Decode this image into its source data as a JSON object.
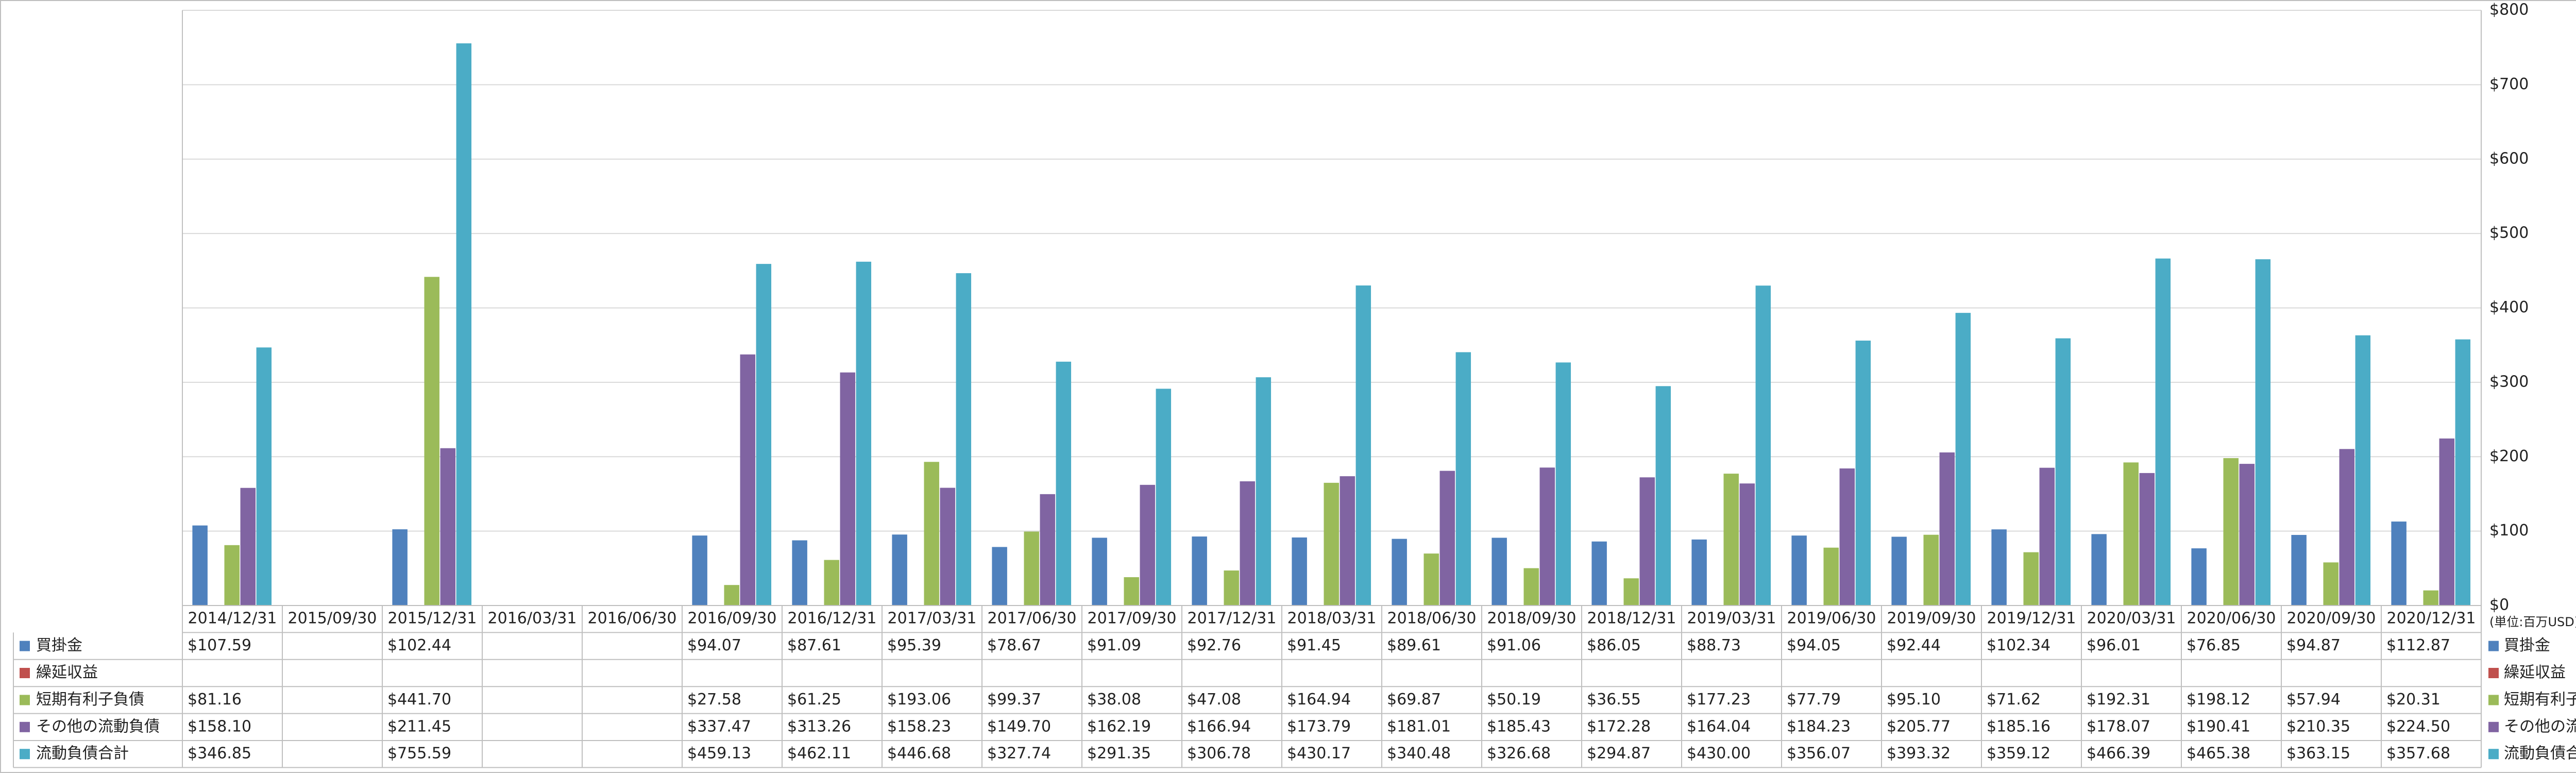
{
  "chart_data": {
    "type": "bar",
    "unit_note": "(単位:百万USD)",
    "categories": [
      "2014/12/31",
      "2015/09/30",
      "2015/12/31",
      "2016/03/31",
      "2016/06/30",
      "2016/09/30",
      "2016/12/31",
      "2017/03/31",
      "2017/06/30",
      "2017/09/30",
      "2017/12/31",
      "2018/03/31",
      "2018/06/30",
      "2018/09/30",
      "2018/12/31",
      "2019/03/31",
      "2019/06/30",
      "2019/09/30",
      "2019/12/31",
      "2020/03/31",
      "2020/06/30",
      "2020/09/30",
      "2020/12/31"
    ],
    "series": [
      {
        "name": "買掛金",
        "color": "#4f81bd",
        "values": [
          107.59,
          null,
          102.44,
          null,
          null,
          94.07,
          87.61,
          95.39,
          78.67,
          91.09,
          92.76,
          91.45,
          89.61,
          91.06,
          86.05,
          88.73,
          94.05,
          92.44,
          102.34,
          96.01,
          76.85,
          94.87,
          112.87
        ],
        "value_labels": [
          "$107.59",
          null,
          "$102.44",
          null,
          null,
          "$94.07",
          "$87.61",
          "$95.39",
          "$78.67",
          "$91.09",
          "$92.76",
          "$91.45",
          "$89.61",
          "$91.06",
          "$86.05",
          "$88.73",
          "$94.05",
          "$92.44",
          "$102.34",
          "$96.01",
          "$76.85",
          "$94.87",
          "$112.87"
        ]
      },
      {
        "name": "繰延収益",
        "color": "#c0504d",
        "values": [
          null,
          null,
          null,
          null,
          null,
          null,
          null,
          null,
          null,
          null,
          null,
          null,
          null,
          null,
          null,
          null,
          null,
          null,
          null,
          null,
          null,
          null,
          null
        ],
        "value_labels": [
          null,
          null,
          null,
          null,
          null,
          null,
          null,
          null,
          null,
          null,
          null,
          null,
          null,
          null,
          null,
          null,
          null,
          null,
          null,
          null,
          null,
          null,
          null
        ]
      },
      {
        "name": "短期有利子負債",
        "color": "#9bbb59",
        "values": [
          81.16,
          null,
          441.7,
          null,
          null,
          27.58,
          61.25,
          193.06,
          99.37,
          38.08,
          47.08,
          164.94,
          69.87,
          50.19,
          36.55,
          177.23,
          77.79,
          95.1,
          71.62,
          192.31,
          198.12,
          57.94,
          20.31
        ],
        "value_labels": [
          "$81.16",
          null,
          "$441.70",
          null,
          null,
          "$27.58",
          "$61.25",
          "$193.06",
          "$99.37",
          "$38.08",
          "$47.08",
          "$164.94",
          "$69.87",
          "$50.19",
          "$36.55",
          "$177.23",
          "$77.79",
          "$95.10",
          "$71.62",
          "$192.31",
          "$198.12",
          "$57.94",
          "$20.31"
        ]
      },
      {
        "name": "その他の流動負債",
        "color": "#8064a2",
        "values": [
          158.1,
          null,
          211.45,
          null,
          null,
          337.47,
          313.26,
          158.23,
          149.7,
          162.19,
          166.94,
          173.79,
          181.01,
          185.43,
          172.28,
          164.04,
          184.23,
          205.77,
          185.16,
          178.07,
          190.41,
          210.35,
          224.5
        ],
        "value_labels": [
          "$158.10",
          null,
          "$211.45",
          null,
          null,
          "$337.47",
          "$313.26",
          "$158.23",
          "$149.70",
          "$162.19",
          "$166.94",
          "$173.79",
          "$181.01",
          "$185.43",
          "$172.28",
          "$164.04",
          "$184.23",
          "$205.77",
          "$185.16",
          "$178.07",
          "$190.41",
          "$210.35",
          "$224.50"
        ]
      },
      {
        "name": "流動負債合計",
        "color": "#4bacc6",
        "values": [
          346.85,
          null,
          755.59,
          null,
          null,
          459.13,
          462.11,
          446.68,
          327.74,
          291.35,
          306.78,
          430.17,
          340.48,
          326.68,
          294.87,
          430.0,
          356.07,
          393.32,
          359.12,
          466.39,
          465.38,
          363.15,
          357.68
        ],
        "value_labels": [
          "$346.85",
          null,
          "$755.59",
          null,
          null,
          "$459.13",
          "$462.11",
          "$446.68",
          "$327.74",
          "$291.35",
          "$306.78",
          "$430.17",
          "$340.48",
          "$326.68",
          "$294.87",
          "$430.00",
          "$356.07",
          "$393.32",
          "$359.12",
          "$466.39",
          "$465.38",
          "$363.15",
          "$357.68"
        ]
      }
    ],
    "ylim": [
      0,
      800
    ],
    "yticks": [
      {
        "value": 0,
        "label": "$0"
      },
      {
        "value": 100,
        "label": "$100"
      },
      {
        "value": 200,
        "label": "$200"
      },
      {
        "value": 300,
        "label": "$300"
      },
      {
        "value": 400,
        "label": "$400"
      },
      {
        "value": 500,
        "label": "$500"
      },
      {
        "value": 600,
        "label": "$600"
      },
      {
        "value": 700,
        "label": "$700"
      },
      {
        "value": 800,
        "label": "$800"
      }
    ],
    "grid": true
  }
}
